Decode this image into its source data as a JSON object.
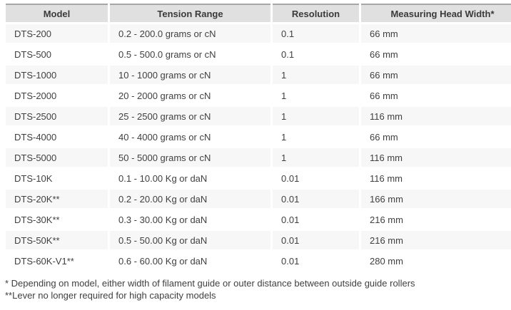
{
  "table": {
    "columns": {
      "model": "Model",
      "tension_range": "Tension Range",
      "resolution": "Resolution",
      "head_width": "Measuring Head Width*"
    },
    "rows": [
      {
        "model": "DTS-200",
        "tension_range": "0.2 - 200.0 grams or cN",
        "resolution": "0.1",
        "head_width": "66 mm"
      },
      {
        "model": "DTS-500",
        "tension_range": "0.5 - 500.0 grams or cN",
        "resolution": "0.1",
        "head_width": "66 mm"
      },
      {
        "model": "DTS-1000",
        "tension_range": "10 - 1000 grams or cN",
        "resolution": "1",
        "head_width": "66 mm"
      },
      {
        "model": "DTS-2000",
        "tension_range": "20 - 2000 grams or cN",
        "resolution": "1",
        "head_width": "66 mm"
      },
      {
        "model": "DTS-2500",
        "tension_range": "25 - 2500 grams or cN",
        "resolution": "1",
        "head_width": "116 mm"
      },
      {
        "model": "DTS-4000",
        "tension_range": "40 - 4000 grams or cN",
        "resolution": "1",
        "head_width": "66 mm"
      },
      {
        "model": "DTS-5000",
        "tension_range": "50 - 5000 grams or cN",
        "resolution": "1",
        "head_width": "116 mm"
      },
      {
        "model": "DTS-10K",
        "tension_range": "0.1 - 10.00 Kg or daN",
        "resolution": "0.01",
        "head_width": "116 mm"
      },
      {
        "model": "DTS-20K**",
        "tension_range": "0.2 - 20.00 Kg or daN",
        "resolution": "0.01",
        "head_width": "166 mm"
      },
      {
        "model": "DTS-30K**",
        "tension_range": "0.3 - 30.00 Kg or daN",
        "resolution": "0.01",
        "head_width": "216 mm"
      },
      {
        "model": "DTS-50K**",
        "tension_range": "0.5 - 50.00 Kg or daN",
        "resolution": "0.01",
        "head_width": "216 mm"
      },
      {
        "model": "DTS-60K-V1**",
        "tension_range": "0.6 - 60.00 Kg or daN",
        "resolution": "0.01",
        "head_width": "280 mm"
      }
    ]
  },
  "footnotes": {
    "line1": "* Depending on model, either width of filament guide or outer distance between outside guide rollers",
    "line2": "**Lever no longer required for high capacity models"
  },
  "colors": {
    "header_bg": "#e0e0e0",
    "header_border_top": "#a6a6a6",
    "alt_row_bg": "#f7f7f7",
    "row_bg": "#ffffff",
    "text": "#404040"
  }
}
